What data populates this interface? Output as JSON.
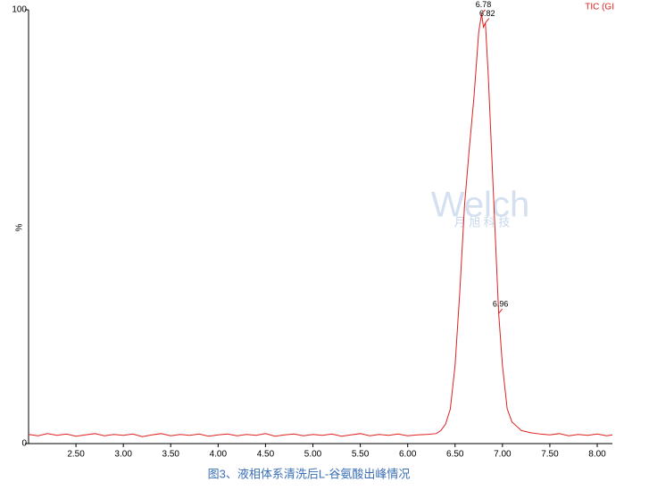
{
  "chart_data": {
    "type": "line",
    "title": "TIC (GI",
    "ylabel": "%",
    "caption": "图3、液相体系清洗后L-谷氨酸出峰情况",
    "watermark": [
      "Welch",
      "月 旭 科 技"
    ],
    "color": "#e02020",
    "x": [
      2.0,
      2.1,
      2.2,
      2.3,
      2.4,
      2.5,
      2.6,
      2.7,
      2.8,
      2.9,
      3.0,
      3.1,
      3.2,
      3.3,
      3.4,
      3.5,
      3.6,
      3.7,
      3.8,
      3.9,
      4.0,
      4.1,
      4.2,
      4.3,
      4.4,
      4.5,
      4.6,
      4.7,
      4.8,
      4.9,
      5.0,
      5.1,
      5.2,
      5.3,
      5.4,
      5.5,
      5.6,
      5.7,
      5.8,
      5.9,
      6.0,
      6.1,
      6.2,
      6.3,
      6.35,
      6.4,
      6.45,
      6.5,
      6.55,
      6.6,
      6.65,
      6.7,
      6.75,
      6.78,
      6.8,
      6.82,
      6.85,
      6.9,
      6.95,
      6.96,
      7.0,
      7.05,
      7.1,
      7.15,
      7.2,
      7.3,
      7.4,
      7.5,
      7.6,
      7.7,
      7.8,
      7.9,
      8.0,
      8.1,
      8.16
    ],
    "values": [
      2.1,
      1.8,
      2.3,
      1.9,
      2.2,
      1.7,
      2.0,
      2.3,
      1.8,
      2.1,
      1.9,
      2.2,
      1.6,
      2.0,
      2.3,
      1.8,
      2.1,
      1.9,
      2.2,
      1.7,
      2.0,
      2.2,
      1.8,
      2.1,
      1.9,
      2.3,
      1.7,
      2.0,
      2.2,
      1.8,
      2.1,
      1.9,
      2.2,
      1.7,
      2.0,
      2.3,
      1.8,
      2.1,
      1.9,
      2.2,
      1.8,
      2.0,
      2.1,
      2.3,
      3.0,
      4.5,
      8.0,
      18,
      35,
      55,
      68,
      80,
      95,
      99,
      96,
      97,
      85,
      60,
      35,
      30,
      18,
      8,
      5,
      4,
      3,
      2.5,
      2.2,
      2.0,
      2.3,
      1.8,
      2.1,
      1.9,
      2.2,
      1.8,
      2.0
    ],
    "annotations": [
      {
        "x": 6.78,
        "y": 99,
        "label": "6.78"
      },
      {
        "x": 6.82,
        "y": 97,
        "label": "6.82"
      },
      {
        "x": 6.96,
        "y": 30,
        "label": "6.96"
      }
    ],
    "xlim": [
      2.0,
      8.16
    ],
    "ylim": [
      0,
      100
    ],
    "xticks": [
      {
        "value": 2.5,
        "label": "2.50"
      },
      {
        "value": 3.0,
        "label": "3.00"
      },
      {
        "value": 3.5,
        "label": "3.50"
      },
      {
        "value": 4.0,
        "label": "4.00"
      },
      {
        "value": 4.5,
        "label": "4.50"
      },
      {
        "value": 5.0,
        "label": "5.00"
      },
      {
        "value": 5.5,
        "label": "5.50"
      },
      {
        "value": 6.0,
        "label": "6.00"
      },
      {
        "value": 6.5,
        "label": "6.50"
      },
      {
        "value": 7.0,
        "label": "7.00"
      },
      {
        "value": 7.5,
        "label": "7.50"
      },
      {
        "value": 8.0,
        "label": "8.00"
      }
    ],
    "yticks": [
      0,
      100
    ]
  }
}
